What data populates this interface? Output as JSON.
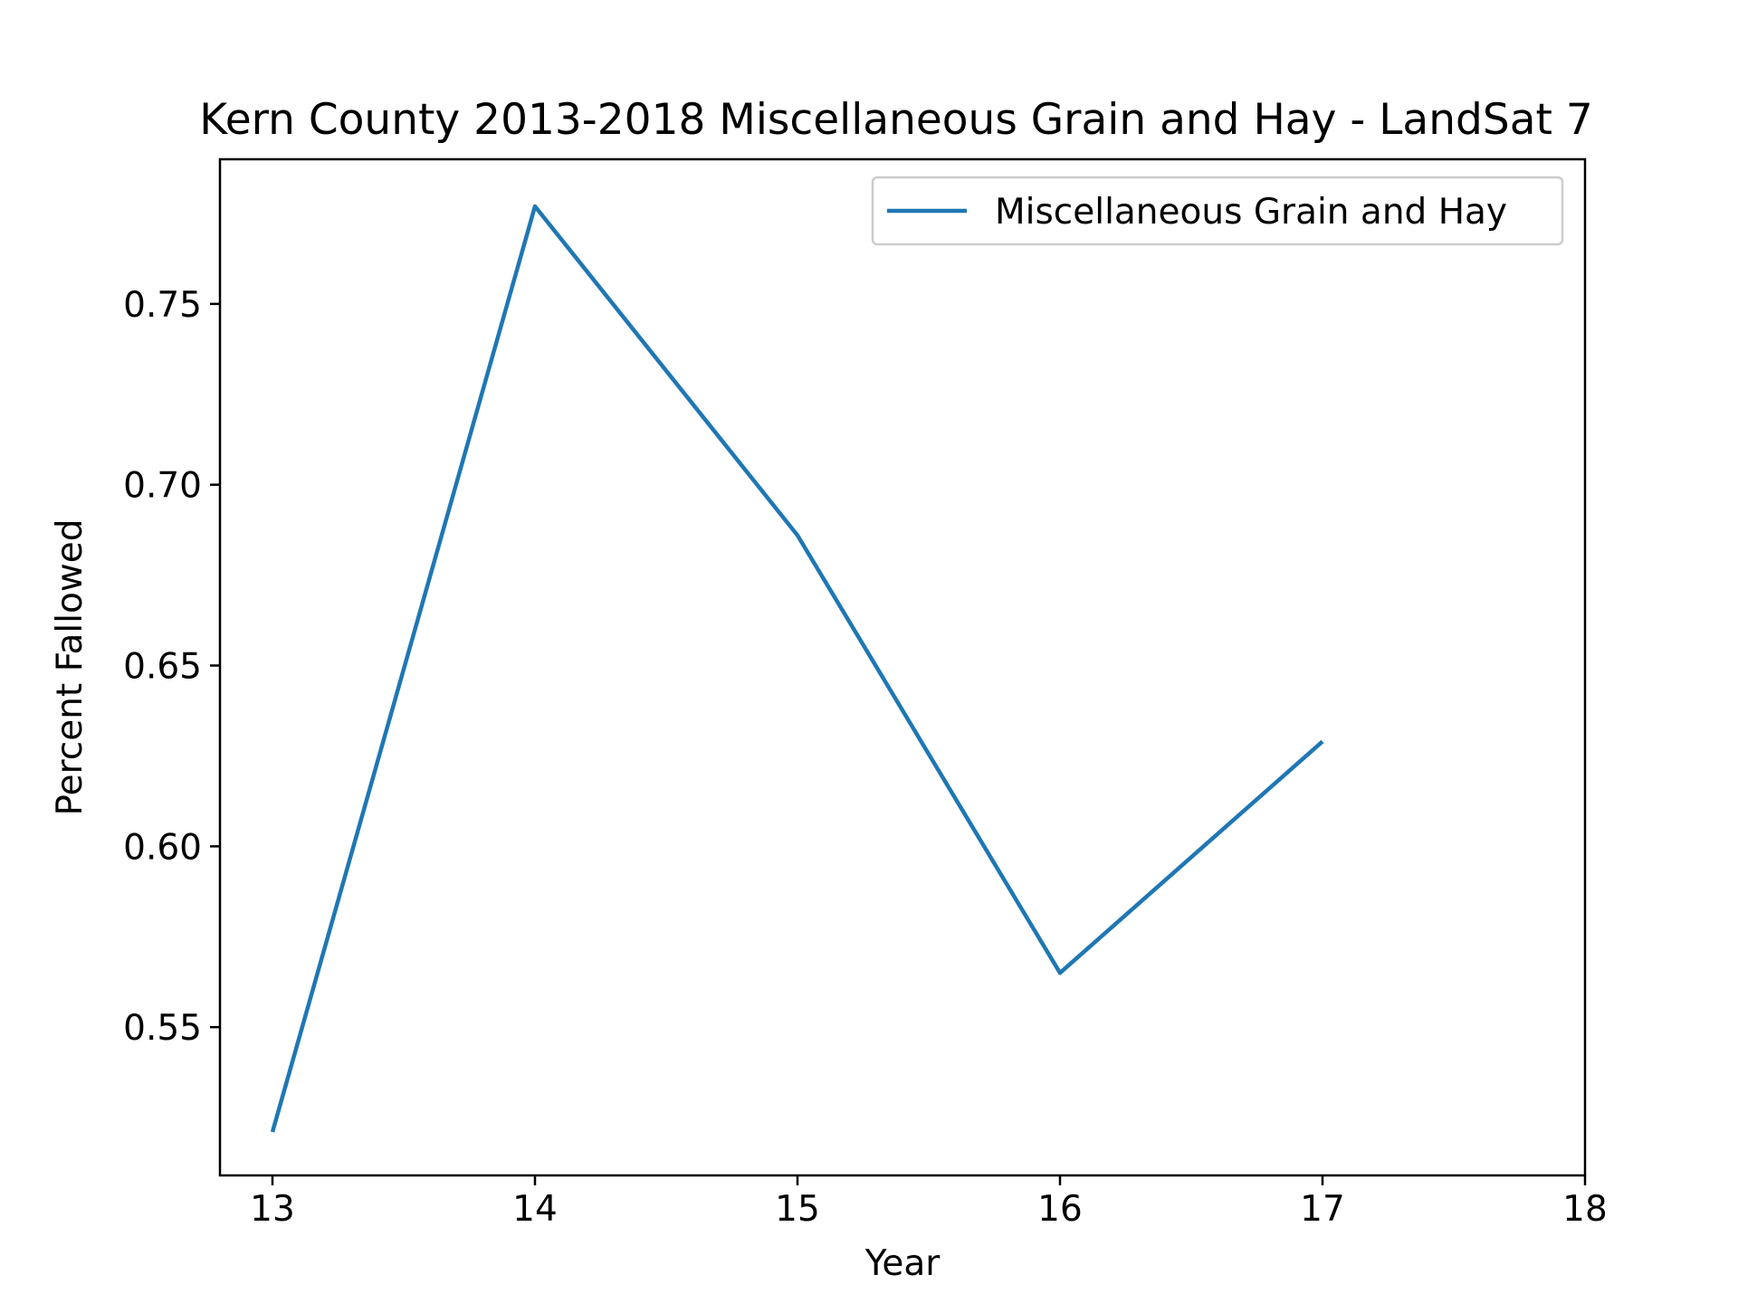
{
  "chart_data": {
    "type": "line",
    "title": "Kern County 2013-2018 Miscellaneous Grain and Hay - LandSat 7",
    "xlabel": "Year",
    "ylabel": "Percent Fallowed",
    "x_ticks": [
      "13",
      "14",
      "15",
      "16",
      "17",
      "18"
    ],
    "y_ticks": [
      "0.55",
      "0.60",
      "0.65",
      "0.70",
      "0.75"
    ],
    "xlim": [
      12.8,
      18
    ],
    "ylim": [
      0.509,
      0.79
    ],
    "grid": false,
    "legend_position": "upper right",
    "series": [
      {
        "name": "Miscellaneous Grain and Hay",
        "color": "#1f77b4",
        "x": [
          13,
          14,
          15,
          16,
          17
        ],
        "y": [
          0.521,
          0.777,
          0.686,
          0.565,
          0.629
        ]
      }
    ]
  }
}
